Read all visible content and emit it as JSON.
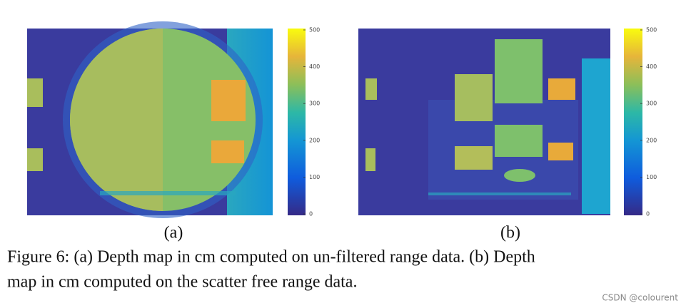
{
  "panels": [
    {
      "label": "(a)"
    },
    {
      "label": "(b)"
    }
  ],
  "colorbar": {
    "ticks": [
      0,
      100,
      200,
      300,
      400,
      500
    ]
  },
  "caption": {
    "lines": [
      "Figure 6: (a) Depth map in cm computed on un-filtered range data. (b) Depth",
      "map in cm computed on the scatter free range data."
    ]
  },
  "watermark": "CSDN @colourent"
}
